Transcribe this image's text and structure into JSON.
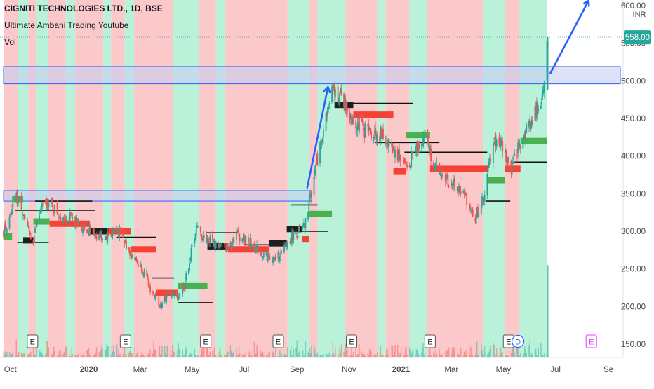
{
  "header": {
    "symbol_line": "CIGNITI TECHNOLOGIES LTD., 1D, BSE",
    "indicator_1": "Ultimate Ambani Trading Youtube",
    "indicator_2": "Vol"
  },
  "price_axis": {
    "currency": "INR",
    "ticks": [
      "600.00",
      "550.00",
      "500.00",
      "450.00",
      "400.00",
      "350.00",
      "300.00",
      "250.00",
      "200.00",
      "150.00"
    ],
    "last_price_label": "558.00"
  },
  "time_axis": {
    "labels": [
      "Oct",
      "2020",
      "Mar",
      "May",
      "Jul",
      "Sep",
      "Nov",
      "2021",
      "Mar",
      "May",
      "Jul",
      "Se"
    ]
  },
  "event_markers": [
    "E",
    "E",
    "E",
    "E",
    "E",
    "E",
    "E",
    "D",
    "E"
  ],
  "colors": {
    "up": "#26a69a",
    "down": "#ef5350",
    "bull_band": "#b9f2d9",
    "bear_band": "#fbc9c9",
    "bull_block": "#4caf50",
    "bear_block": "#f44336",
    "zone_fill": "#c9cdf3",
    "zone_stroke": "#2962ff",
    "arrow": "#2962ff",
    "last_price_bg": "#26a69a"
  },
  "chart_data": {
    "type": "candlestick",
    "ylim": [
      145,
      610
    ],
    "log_scale": false,
    "grid": false,
    "last_price": 558,
    "x_range": [
      "2019-09-23",
      "2021-09-15"
    ],
    "price_path": [
      [
        "2019-09-23",
        300
      ],
      [
        "2019-10-01",
        315
      ],
      [
        "2019-10-07",
        345
      ],
      [
        "2019-10-14",
        335
      ],
      [
        "2019-10-21",
        300
      ],
      [
        "2019-10-28",
        290
      ],
      [
        "2019-11-04",
        322
      ],
      [
        "2019-11-11",
        340
      ],
      [
        "2019-11-20",
        332
      ],
      [
        "2019-11-28",
        322
      ],
      [
        "2019-12-09",
        318
      ],
      [
        "2019-12-20",
        310
      ],
      [
        "2020-01-03",
        300
      ],
      [
        "2020-01-15",
        292
      ],
      [
        "2020-01-24",
        294
      ],
      [
        "2020-02-03",
        303
      ],
      [
        "2020-02-10",
        290
      ],
      [
        "2020-02-17",
        275
      ],
      [
        "2020-02-26",
        260
      ],
      [
        "2020-03-06",
        245
      ],
      [
        "2020-03-12",
        225
      ],
      [
        "2020-03-20",
        210
      ],
      [
        "2020-03-26",
        200
      ],
      [
        "2020-04-03",
        218
      ],
      [
        "2020-04-13",
        212
      ],
      [
        "2020-04-22",
        228
      ],
      [
        "2020-05-06",
        305
      ],
      [
        "2020-05-13",
        292
      ],
      [
        "2020-05-22",
        288
      ],
      [
        "2020-06-01",
        282
      ],
      [
        "2020-06-10",
        278
      ],
      [
        "2020-06-22",
        296
      ],
      [
        "2020-07-06",
        286
      ],
      [
        "2020-07-20",
        272
      ],
      [
        "2020-08-05",
        262
      ],
      [
        "2020-08-14",
        270
      ],
      [
        "2020-08-24",
        290
      ],
      [
        "2020-09-03",
        300
      ],
      [
        "2020-09-10",
        305
      ],
      [
        "2020-09-21",
        375
      ],
      [
        "2020-10-01",
        430
      ],
      [
        "2020-10-12",
        485
      ],
      [
        "2020-10-22",
        480
      ],
      [
        "2020-11-02",
        455
      ],
      [
        "2020-11-13",
        440
      ],
      [
        "2020-11-24",
        432
      ],
      [
        "2020-12-07",
        428
      ],
      [
        "2020-12-17",
        418
      ],
      [
        "2020-12-28",
        402
      ],
      [
        "2021-01-08",
        385
      ],
      [
        "2021-01-18",
        410
      ],
      [
        "2021-01-29",
        428
      ],
      [
        "2021-02-10",
        385
      ],
      [
        "2021-02-22",
        370
      ],
      [
        "2021-03-05",
        360
      ],
      [
        "2021-03-18",
        345
      ],
      [
        "2021-03-29",
        318
      ],
      [
        "2021-04-08",
        345
      ],
      [
        "2021-04-19",
        420
      ],
      [
        "2021-04-29",
        415
      ],
      [
        "2021-05-10",
        380
      ],
      [
        "2021-05-18",
        410
      ],
      [
        "2021-05-28",
        435
      ],
      [
        "2021-06-08",
        458
      ],
      [
        "2021-06-16",
        485
      ],
      [
        "2021-06-22",
        558
      ]
    ],
    "regime_bands": [
      [
        "2019-09-23",
        "2019-10-10",
        "bear"
      ],
      [
        "2019-10-10",
        "2019-10-22",
        "bull"
      ],
      [
        "2019-10-22",
        "2019-10-31",
        "bear"
      ],
      [
        "2019-10-31",
        "2019-11-14",
        "bull"
      ],
      [
        "2019-11-14",
        "2019-12-05",
        "bear"
      ],
      [
        "2019-12-05",
        "2019-12-16",
        "bull"
      ],
      [
        "2019-12-16",
        "2020-01-18",
        "bear"
      ],
      [
        "2020-01-18",
        "2020-01-27",
        "bull"
      ],
      [
        "2020-01-27",
        "2020-02-12",
        "bear"
      ],
      [
        "2020-02-12",
        "2020-02-23",
        "bull"
      ],
      [
        "2020-02-23",
        "2020-04-09",
        "bear"
      ],
      [
        "2020-04-09",
        "2020-05-09",
        "bull"
      ],
      [
        "2020-05-09",
        "2020-05-29",
        "bear"
      ],
      [
        "2020-05-29",
        "2020-06-09",
        "bull"
      ],
      [
        "2020-06-09",
        "2020-08-21",
        "bear"
      ],
      [
        "2020-08-21",
        "2020-09-16",
        "bull"
      ],
      [
        "2020-09-16",
        "2020-09-25",
        "bear"
      ],
      [
        "2020-09-25",
        "2020-10-28",
        "bull"
      ],
      [
        "2020-10-28",
        "2020-12-04",
        "bear"
      ],
      [
        "2020-12-04",
        "2020-12-14",
        "bull"
      ],
      [
        "2020-12-14",
        "2021-01-11",
        "bear"
      ],
      [
        "2021-01-11",
        "2021-01-31",
        "bull"
      ],
      [
        "2021-01-31",
        "2021-04-07",
        "bear"
      ],
      [
        "2021-04-07",
        "2021-05-03",
        "bull"
      ],
      [
        "2021-05-03",
        "2021-05-20",
        "bear"
      ],
      [
        "2021-05-20",
        "2021-06-21",
        "bull"
      ]
    ],
    "level_blocks": [
      [
        "2019-09-23",
        "2019-10-03",
        293,
        "bull"
      ],
      [
        "2019-10-03",
        "2019-10-16",
        343,
        "bull"
      ],
      [
        "2019-10-16",
        "2019-10-28",
        288,
        "dark"
      ],
      [
        "2019-10-28",
        "2019-11-16",
        313,
        "bull"
      ],
      [
        "2019-11-16",
        "2020-01-02",
        310,
        "bear"
      ],
      [
        "2020-01-02",
        "2020-01-24",
        300,
        "dark"
      ],
      [
        "2020-01-24",
        "2020-02-19",
        300,
        "bear"
      ],
      [
        "2020-02-19",
        "2020-03-20",
        276,
        "bear"
      ],
      [
        "2020-03-20",
        "2020-04-14",
        218,
        "bear"
      ],
      [
        "2020-04-14",
        "2020-05-19",
        227,
        "bull"
      ],
      [
        "2020-05-19",
        "2020-06-12",
        280,
        "dark"
      ],
      [
        "2020-06-12",
        "2020-07-30",
        276,
        "bear"
      ],
      [
        "2020-07-30",
        "2020-08-20",
        284,
        "dark"
      ],
      [
        "2020-08-20",
        "2020-09-07",
        303,
        "dark"
      ],
      [
        "2020-09-07",
        "2020-09-15",
        290,
        "bear"
      ],
      [
        "2020-09-15",
        "2020-10-12",
        323,
        "bull"
      ],
      [
        "2020-10-15",
        "2020-11-06",
        468,
        "dark"
      ],
      [
        "2020-11-06",
        "2020-12-23",
        455,
        "bear"
      ],
      [
        "2020-12-23",
        "2021-01-07",
        380,
        "bear"
      ],
      [
        "2021-01-07",
        "2021-02-04",
        428,
        "bull"
      ],
      [
        "2021-02-04",
        "2021-04-13",
        383,
        "bear"
      ],
      [
        "2021-04-13",
        "2021-05-03",
        368,
        "bull"
      ],
      [
        "2021-05-03",
        "2021-05-21",
        383,
        "bear"
      ],
      [
        "2021-05-21",
        "2021-06-21",
        420,
        "bull"
      ]
    ],
    "level_lines": [
      [
        "2019-10-07",
        "2020-01-08",
        328
      ],
      [
        "2019-10-30",
        "2020-01-05",
        340
      ],
      [
        "2019-10-09",
        "2019-11-15",
        285
      ],
      [
        "2020-02-03",
        "2020-03-20",
        292
      ],
      [
        "2020-03-15",
        "2020-04-10",
        238
      ],
      [
        "2020-04-15",
        "2020-05-25",
        205
      ],
      [
        "2020-05-18",
        "2020-06-25",
        298
      ],
      [
        "2020-07-01",
        "2020-08-21",
        282
      ],
      [
        "2020-08-25",
        "2020-09-25",
        335
      ],
      [
        "2020-09-01",
        "2020-10-07",
        300
      ],
      [
        "2020-11-01",
        "2021-01-15",
        470
      ],
      [
        "2020-12-02",
        "2021-02-15",
        418
      ],
      [
        "2021-01-05",
        "2021-04-12",
        405
      ],
      [
        "2021-04-10",
        "2021-05-09",
        340
      ],
      [
        "2021-05-14",
        "2021-06-21",
        392
      ]
    ],
    "zones": [
      {
        "from": "2019-09-23",
        "to": "2020-09-18",
        "low": 340,
        "high": 354
      },
      {
        "from": "2019-09-23",
        "to": "2021-09-15",
        "low": 496,
        "high": 519
      }
    ],
    "annotations": [
      {
        "type": "arrow",
        "from": [
          "2020-09-13",
          358
        ],
        "to": [
          "2020-10-07",
          490
        ]
      },
      {
        "type": "arrow",
        "from": [
          "2021-06-25",
          510
        ],
        "to": [
          "2021-08-08",
          605
        ]
      }
    ],
    "event_dates": [
      "2019-10-27",
      "2020-02-13",
      "2020-05-17",
      "2020-08-10",
      "2020-11-04",
      "2021-02-04",
      "2021-05-07",
      "2021-05-18",
      "2021-08-12"
    ],
    "volume_spike": {
      "date": "2021-06-22",
      "level": 255
    }
  }
}
